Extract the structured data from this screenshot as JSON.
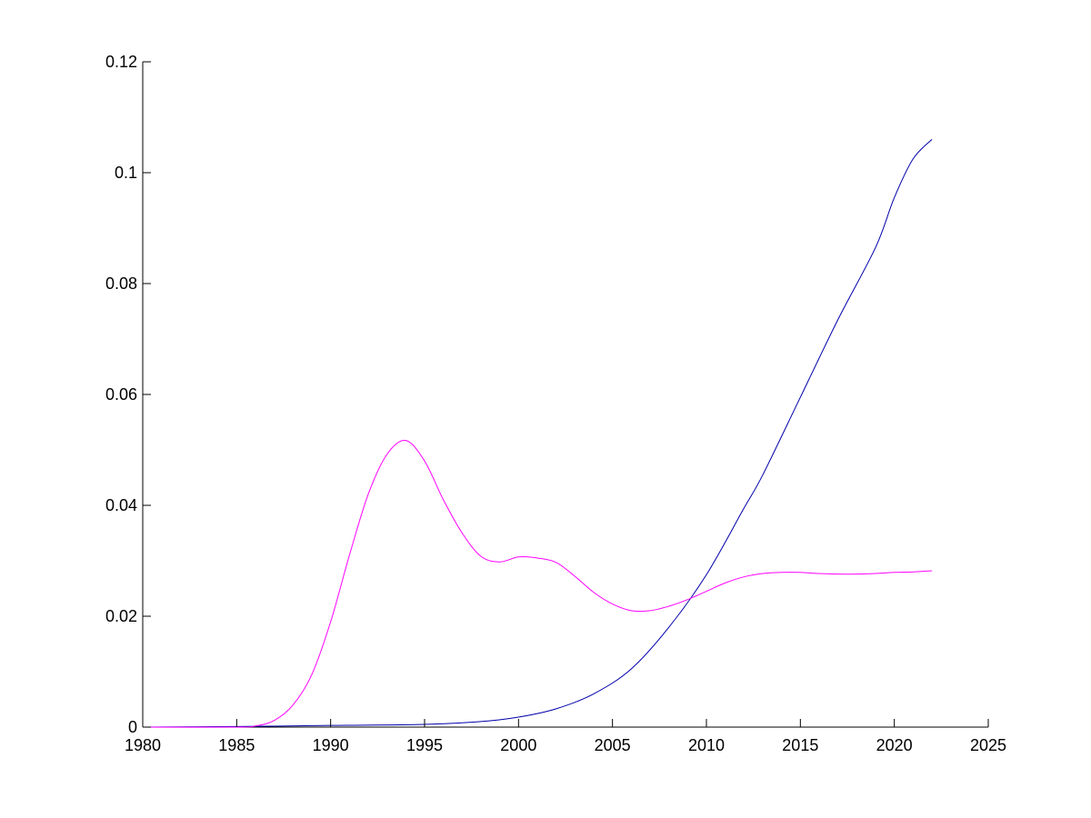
{
  "chart_data": {
    "type": "line",
    "title": "",
    "xlabel": "",
    "ylabel": "",
    "xlim": [
      1980,
      2025
    ],
    "ylim": [
      0,
      0.12
    ],
    "grid": false,
    "x_ticks": [
      1980,
      1985,
      1990,
      1995,
      2000,
      2005,
      2010,
      2015,
      2020,
      2025
    ],
    "x_tick_labels": [
      "1980",
      "1985",
      "1990",
      "1995",
      "2000",
      "2005",
      "2010",
      "2015",
      "2020",
      "2025"
    ],
    "y_ticks": [
      0,
      0.02,
      0.04,
      0.06,
      0.08,
      0.1,
      0.12
    ],
    "y_tick_labels": [
      "0",
      "0.02",
      "0.04",
      "0.06",
      "0.08",
      "0.1",
      "0.12"
    ],
    "series": [
      {
        "color": "#0000aa",
        "x": [
          1980,
          1985,
          1990,
          1995,
          1998,
          2000,
          2002,
          2004,
          2006,
          2008,
          2010,
          2012,
          2013,
          2015,
          2017,
          2019,
          2020,
          2021,
          2022
        ],
        "y": [
          0,
          0.0001,
          0.0003,
          0.0005,
          0.001,
          0.0018,
          0.0033,
          0.006,
          0.0105,
          0.018,
          0.0275,
          0.0395,
          0.0455,
          0.0595,
          0.0735,
          0.0865,
          0.0955,
          0.1025,
          0.106
        ]
      },
      {
        "color": "#ff00ff",
        "x": [
          1980,
          1985,
          1986,
          1987,
          1988,
          1989,
          1990,
          1991,
          1992,
          1993,
          1994,
          1995,
          1996,
          1997,
          1998,
          1999,
          2000,
          2001,
          2002,
          2003,
          2004,
          2005,
          2006,
          2007,
          2008,
          2009,
          2010,
          2011,
          2012,
          2013,
          2014,
          2015,
          2016,
          2017,
          2018,
          2019,
          2020,
          2021,
          2022
        ],
        "y": [
          0,
          0,
          0.0002,
          0.0012,
          0.004,
          0.0095,
          0.019,
          0.031,
          0.042,
          0.0492,
          0.0517,
          0.048,
          0.041,
          0.035,
          0.0308,
          0.0298,
          0.0307,
          0.0305,
          0.0297,
          0.0272,
          0.0243,
          0.0222,
          0.021,
          0.021,
          0.0218,
          0.023,
          0.0245,
          0.026,
          0.0271,
          0.0277,
          0.0279,
          0.0279,
          0.0277,
          0.0276,
          0.0276,
          0.0277,
          0.0279,
          0.028,
          0.0282
        ]
      }
    ]
  }
}
